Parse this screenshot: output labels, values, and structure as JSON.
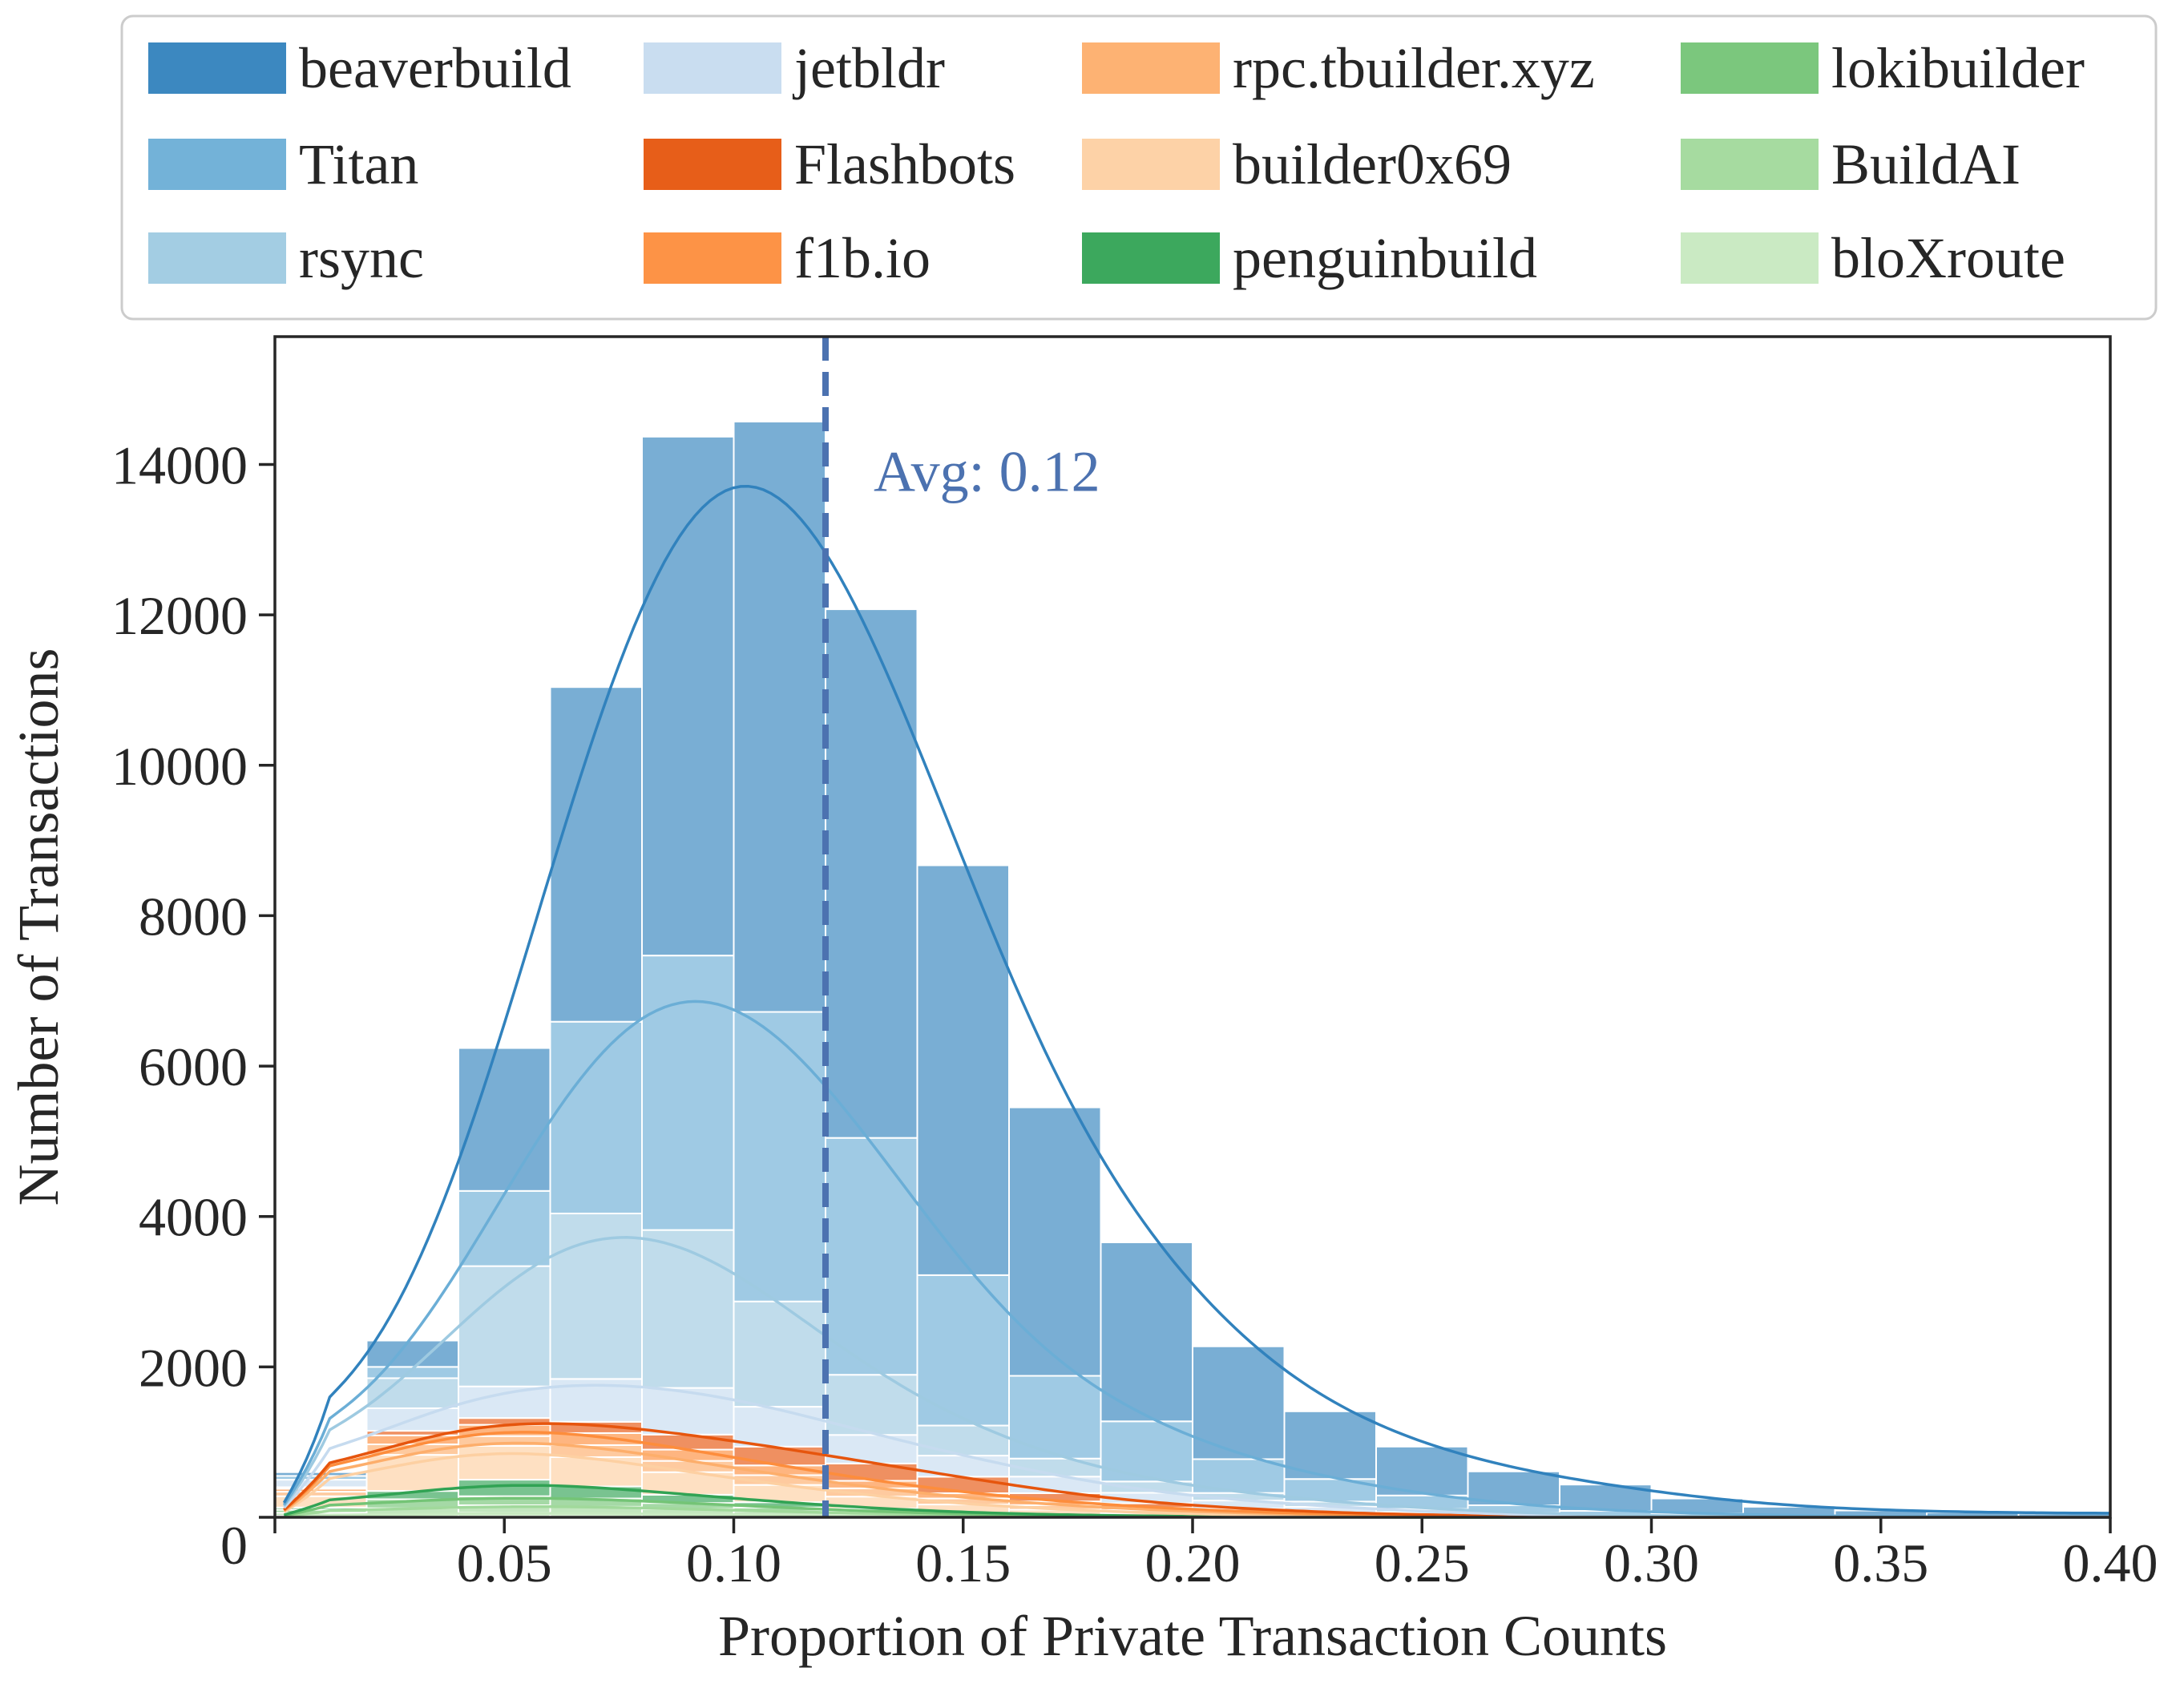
{
  "chart_data": {
    "type": "bar",
    "stacked": true,
    "xlabel": "Proportion of Private Transaction Counts",
    "ylabel": "Number of Transactions",
    "xlim": [
      0.0,
      0.4
    ],
    "ylim": [
      0,
      15700
    ],
    "bin_width": 0.02,
    "xticks": [
      0.05,
      0.1,
      0.15,
      0.2,
      0.25,
      0.3,
      0.35,
      0.4
    ],
    "xtick_labels": [
      "0.05",
      "0.10",
      "0.15",
      "0.20",
      "0.25",
      "0.30",
      "0.35",
      "0.40"
    ],
    "yticks": [
      0,
      2000,
      4000,
      6000,
      8000,
      10000,
      12000,
      14000
    ],
    "ytick_labels": [
      "0",
      "2000",
      "4000",
      "6000",
      "8000",
      "10000",
      "12000",
      "14000"
    ],
    "legend_position": "top",
    "average": {
      "value": 0.12,
      "label": "Avg: 0.12",
      "color": "#4c72b0"
    },
    "bin_left_edges": [
      0.0,
      0.02,
      0.04,
      0.06,
      0.08,
      0.1,
      0.12,
      0.14,
      0.16,
      0.18,
      0.2,
      0.22,
      0.24,
      0.26,
      0.28,
      0.3,
      0.32,
      0.34,
      0.36,
      0.38
    ],
    "series": [
      {
        "name": "bloXroute",
        "color": "#c7e9c0",
        "values": [
          20,
          40,
          60,
          50,
          40,
          30,
          15,
          10,
          5,
          3,
          2,
          1,
          0,
          0,
          0,
          0,
          0,
          0,
          0,
          0
        ]
      },
      {
        "name": "BuildAI",
        "color": "#a1d99b",
        "values": [
          40,
          80,
          100,
          90,
          70,
          50,
          30,
          15,
          8,
          4,
          2,
          1,
          0,
          0,
          0,
          0,
          0,
          0,
          0,
          0
        ]
      },
      {
        "name": "lokibuilder",
        "color": "#74c476",
        "values": [
          40,
          120,
          120,
          110,
          80,
          50,
          30,
          15,
          8,
          4,
          2,
          1,
          0,
          0,
          0,
          0,
          0,
          0,
          0,
          0
        ]
      },
      {
        "name": "penguinbuild",
        "color": "#31a354",
        "values": [
          30,
          110,
          220,
          160,
          110,
          70,
          40,
          20,
          10,
          5,
          2,
          1,
          0,
          0,
          0,
          0,
          0,
          0,
          0,
          0
        ]
      },
      {
        "name": "builder0x69",
        "color": "#fdd0a2",
        "values": [
          150,
          480,
          450,
          390,
          300,
          230,
          160,
          110,
          70,
          40,
          20,
          10,
          5,
          0,
          0,
          0,
          0,
          0,
          0,
          0
        ]
      },
      {
        "name": "rpc.tbuilder.xyz",
        "color": "#fdae6b",
        "values": [
          60,
          140,
          130,
          160,
          150,
          130,
          110,
          80,
          60,
          40,
          25,
          15,
          10,
          5,
          0,
          0,
          0,
          0,
          0,
          0
        ]
      },
      {
        "name": "f1b.io",
        "color": "#fd8d3c",
        "values": [
          40,
          120,
          150,
          160,
          150,
          130,
          100,
          70,
          50,
          30,
          20,
          10,
          5,
          5,
          0,
          0,
          0,
          0,
          0,
          0
        ]
      },
      {
        "name": "Flashbots",
        "color": "#e6550d",
        "values": [
          20,
          60,
          90,
          150,
          200,
          250,
          230,
          220,
          110,
          60,
          40,
          20,
          10,
          5,
          0,
          0,
          0,
          0,
          0,
          0
        ]
      },
      {
        "name": "jetbldr",
        "color": "#c6dbef",
        "values": [
          100,
          300,
          420,
          570,
          620,
          530,
          380,
          280,
          220,
          140,
          110,
          80,
          40,
          20,
          10,
          5,
          0,
          0,
          0,
          0
        ]
      },
      {
        "name": "rsync",
        "color": "#9ecae1",
        "values": [
          0,
          400,
          1600,
          2200,
          2100,
          1400,
          800,
          400,
          240,
          150,
          100,
          70,
          40,
          25,
          15,
          10,
          5,
          0,
          0,
          0
        ]
      },
      {
        "name": "Titan",
        "color": "#6baed6",
        "values": [
          50,
          150,
          1000,
          2550,
          3650,
          3850,
          3150,
          2000,
          1100,
          800,
          450,
          300,
          180,
          100,
          60,
          35,
          15,
          10,
          5,
          0
        ]
      },
      {
        "name": "beaverbuild",
        "color": "#3182bd",
        "values": [
          50,
          350,
          1900,
          4450,
          6900,
          7850,
          7030,
          5450,
          3570,
          2380,
          1500,
          900,
          650,
          450,
          350,
          200,
          120,
          80,
          60,
          50
        ]
      }
    ]
  },
  "legend": {
    "items": [
      {
        "name": "beaverbuild",
        "color": "#3182bd"
      },
      {
        "name": "jetbldr",
        "color": "#c6dbef"
      },
      {
        "name": "rpc.tbuilder.xyz",
        "color": "#fdae6b"
      },
      {
        "name": "lokibuilder",
        "color": "#74c476"
      },
      {
        "name": "Titan",
        "color": "#6baed6"
      },
      {
        "name": "Flashbots",
        "color": "#e6550d"
      },
      {
        "name": "builder0x69",
        "color": "#fdd0a2"
      },
      {
        "name": "BuildAI",
        "color": "#a1d99b"
      },
      {
        "name": "rsync",
        "color": "#9ecae1"
      },
      {
        "name": "f1b.io",
        "color": "#fd8d3c"
      },
      {
        "name": "penguinbuild",
        "color": "#31a354"
      },
      {
        "name": "bloXroute",
        "color": "#c7e9c0"
      }
    ]
  }
}
